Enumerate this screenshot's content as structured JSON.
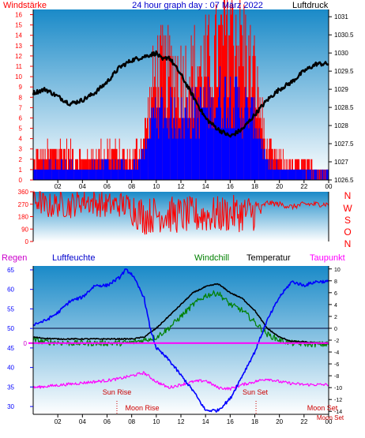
{
  "header": {
    "left_label": "Windstärke",
    "center_title": "24 hour graph day : 07 März 2022",
    "right_label": "Luftdruck"
  },
  "direction_labels": [
    "N",
    "W",
    "S",
    "O",
    "N"
  ],
  "bottom_header": {
    "regen": "Regen",
    "luftfeuchte": "Luftfeuchte",
    "windchill": "Windchill",
    "temperatur": "Temperatur",
    "taupunkt": "Taupunkt"
  },
  "events": {
    "sun_rise": "Sun Rise",
    "sun_set": "Sun Set",
    "moon_rise": "Moon Rise",
    "moon_set_short": "Moon Set",
    "moon_set": "Moon Set"
  },
  "colors": {
    "wind": "#ff0000",
    "gust": "#0000ff",
    "pressure": "#000000",
    "direction": "#ff0000",
    "humidity": "#0000ff",
    "windchill": "#008000",
    "temperature": "#000000",
    "dewpoint": "#ff00ff",
    "left_axis_top": "#ff0000",
    "right_axis": "#000000",
    "sky_top": "#1a8ac8",
    "sky_bottom": "#ffffff"
  },
  "chart_data": [
    {
      "type": "bar",
      "name": "wind",
      "x_ticks": [
        "02",
        "04",
        "06",
        "08",
        "10",
        "12",
        "14",
        "16",
        "18",
        "20",
        "22",
        "00"
      ],
      "y_left_ticks": [
        "0",
        "1",
        "2",
        "3",
        "4",
        "5",
        "6",
        "7",
        "8",
        "9",
        "10",
        "11",
        "12",
        "13",
        "14",
        "15",
        "16"
      ],
      "y_left_range": [
        0,
        16.5
      ],
      "y_right_ticks": [
        "1026.5",
        "1027",
        "1027.5",
        "1028",
        "1028.5",
        "1029",
        "1029.5",
        "1030",
        "1030.5",
        "1031"
      ],
      "y_right_range": [
        1026.5,
        1031.2
      ],
      "x_range_hours": [
        0,
        24
      ],
      "gust_profile_hours": [
        0,
        2,
        4,
        6,
        8,
        9,
        10,
        12,
        14,
        15,
        16,
        17,
        18,
        19,
        20,
        24
      ],
      "gust_profile_values": [
        2,
        3,
        2,
        3,
        2,
        4,
        11,
        10,
        11,
        12,
        16,
        13,
        10,
        3,
        2,
        1
      ],
      "wind_profile_hours": [
        0,
        2,
        4,
        6,
        8,
        9,
        10,
        12,
        14,
        15,
        16,
        17,
        18,
        19,
        20,
        24
      ],
      "wind_profile_values": [
        1,
        1.5,
        1,
        1.5,
        1,
        3,
        7,
        6,
        7,
        8,
        8,
        7,
        6,
        1.5,
        1,
        0.5
      ],
      "pressure_hours": [
        0,
        1,
        2,
        3,
        4,
        5,
        6,
        7,
        8,
        9,
        10,
        10.5,
        11,
        12,
        13,
        14,
        15,
        16,
        17,
        18,
        19,
        20,
        21,
        22,
        23,
        24
      ],
      "pressure_values": [
        1028.9,
        1029.0,
        1028.8,
        1028.6,
        1028.7,
        1028.9,
        1029.2,
        1029.6,
        1029.8,
        1029.9,
        1030.0,
        1029.8,
        1029.9,
        1029.4,
        1028.8,
        1028.2,
        1027.9,
        1027.7,
        1027.9,
        1028.3,
        1028.7,
        1029.0,
        1029.2,
        1029.5,
        1029.7,
        1029.7
      ]
    },
    {
      "type": "line",
      "name": "wind_direction",
      "y_ticks": [
        "0",
        "90",
        "180",
        "270",
        "360"
      ],
      "y_range": [
        0,
        360
      ],
      "x_range_hours": [
        0,
        24
      ],
      "segments_hours": [
        0,
        0.5,
        1,
        2,
        3,
        4,
        5,
        6,
        7,
        8,
        9,
        10,
        12,
        14,
        16,
        18,
        19,
        20,
        21,
        22,
        23,
        24
      ],
      "segments_values": [
        290,
        300,
        250,
        270,
        260,
        300,
        280,
        260,
        270,
        250,
        180,
        200,
        190,
        190,
        200,
        210,
        280,
        270,
        250,
        270,
        270,
        270
      ]
    },
    {
      "type": "line",
      "name": "weather",
      "y_left_ticks": [
        "30",
        "35",
        "40",
        "45",
        "50",
        "55",
        "60",
        "65"
      ],
      "y_left_range": [
        28,
        66
      ],
      "y_right_ticks": [
        "-14",
        "-12",
        "-10",
        "-8",
        "-6",
        "-4",
        "-2",
        "0",
        "2",
        "4",
        "6",
        "8",
        "10"
      ],
      "y_right_range": [
        -14.5,
        10.5
      ],
      "x_ticks": [
        "02",
        "04",
        "06",
        "08",
        "10",
        "12",
        "14",
        "16",
        "18",
        "20",
        "22",
        "00"
      ],
      "rain_value": "0",
      "x_range_hours": [
        0,
        24
      ],
      "humidity_hours": [
        0,
        1,
        2,
        3,
        4,
        5,
        6,
        7,
        7.5,
        8,
        9,
        9.5,
        10,
        11,
        12,
        13,
        14,
        15,
        16,
        17,
        18,
        19,
        20,
        21,
        22,
        23,
        24
      ],
      "humidity_values": [
        51,
        52,
        54,
        57,
        58,
        61,
        61,
        63,
        65,
        64,
        58,
        50,
        45,
        42,
        38,
        34,
        29,
        29,
        32,
        38,
        44,
        52,
        58,
        62,
        61,
        62,
        62
      ],
      "temperature_hours": [
        0,
        1,
        2,
        3,
        4,
        5,
        6,
        7,
        8,
        9,
        10,
        11,
        12,
        13,
        14,
        15,
        16,
        17,
        18,
        19,
        20,
        21,
        22,
        23,
        24
      ],
      "temperature_values": [
        -1.5,
        -1.7,
        -1.8,
        -1.8,
        -1.8,
        -1.8,
        -1.8,
        -1.8,
        -1.8,
        -1.5,
        0,
        2,
        4,
        6,
        7,
        7.5,
        6,
        5,
        3,
        0,
        -1.5,
        -2.2,
        -2.3,
        -2.5,
        -2.5
      ],
      "windchill_hours": [
        0,
        1,
        2,
        3,
        4,
        5,
        6,
        7,
        8,
        9,
        10,
        11,
        12,
        13,
        14,
        15,
        16,
        17,
        18,
        19,
        20,
        21,
        22,
        23,
        24
      ],
      "windchill_values": [
        -2,
        -2.3,
        -2.4,
        -2.5,
        -2.5,
        -2.5,
        -2.5,
        -2.5,
        -2.4,
        -2,
        -1.5,
        0,
        2,
        4,
        5.5,
        6,
        4,
        3,
        1,
        -1,
        -2,
        -2.5,
        -2.6,
        -2.7,
        -2.7
      ],
      "dewpoint_hours": [
        0,
        1,
        2,
        3,
        4,
        5,
        6,
        7,
        8,
        9,
        10,
        11,
        12,
        13,
        14,
        15,
        16,
        17,
        18,
        19,
        20,
        21,
        22,
        23,
        24
      ],
      "dewpoint_values": [
        -10,
        -9.8,
        -9.6,
        -9.4,
        -9.2,
        -9,
        -8.8,
        -8.5,
        -8,
        -7.5,
        -9,
        -10,
        -9.5,
        -9,
        -8.8,
        -10,
        -10.2,
        -9.5,
        -9,
        -8.5,
        -9,
        -9.3,
        -9.5,
        -9.5,
        -9.5
      ]
    }
  ]
}
